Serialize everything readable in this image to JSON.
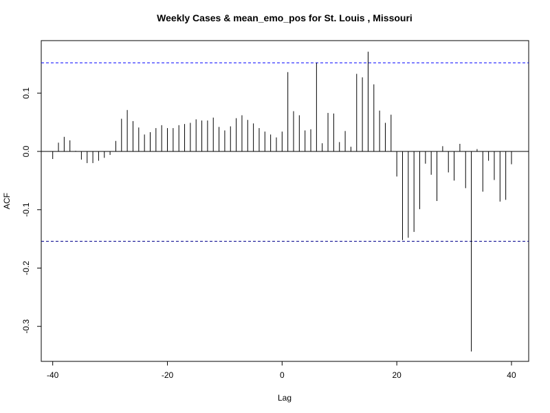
{
  "chart_data": {
    "type": "bar",
    "title": "Weekly Cases & mean_emo_pos for St. Louis , Missouri",
    "xlabel": "Lag",
    "ylabel": "ACF",
    "xlim": [
      -42,
      43
    ],
    "ylim": [
      -0.36,
      0.19
    ],
    "xticks": [
      -40,
      -20,
      0,
      20,
      40
    ],
    "yticks": [
      -0.3,
      -0.2,
      -0.1,
      0.0,
      0.1
    ],
    "ytick_labels": [
      "-0.3",
      "-0.2",
      "-0.1",
      "0.0",
      "0.1"
    ],
    "confidence_bounds": [
      0.152,
      -0.154
    ],
    "confidence_color": "#0000ff",
    "zero_line": 0.0,
    "lags": [
      -40,
      -39,
      -38,
      -37,
      -36,
      -35,
      -34,
      -33,
      -32,
      -31,
      -30,
      -29,
      -28,
      -27,
      -26,
      -25,
      -24,
      -23,
      -22,
      -21,
      -20,
      -19,
      -18,
      -17,
      -16,
      -15,
      -14,
      -13,
      -12,
      -11,
      -10,
      -9,
      -8,
      -7,
      -6,
      -5,
      -4,
      -3,
      -2,
      -1,
      0,
      1,
      2,
      3,
      4,
      5,
      6,
      7,
      8,
      9,
      10,
      11,
      12,
      13,
      14,
      15,
      16,
      17,
      18,
      19,
      20,
      21,
      22,
      23,
      24,
      25,
      26,
      27,
      28,
      29,
      30,
      31,
      32,
      33,
      34,
      35,
      36,
      37,
      38,
      39,
      40
    ],
    "values": [
      -0.013,
      0.015,
      0.025,
      0.019,
      0.001,
      -0.014,
      -0.02,
      -0.02,
      -0.016,
      -0.011,
      -0.006,
      0.018,
      0.056,
      0.071,
      0.052,
      0.041,
      0.029,
      0.033,
      0.04,
      0.045,
      0.04,
      0.04,
      0.045,
      0.047,
      0.049,
      0.055,
      0.053,
      0.053,
      0.058,
      0.042,
      0.036,
      0.043,
      0.057,
      0.062,
      0.054,
      0.048,
      0.04,
      0.034,
      0.029,
      0.024,
      0.034,
      0.136,
      0.069,
      0.062,
      0.036,
      0.038,
      0.152,
      0.014,
      0.066,
      0.065,
      0.016,
      0.035,
      0.008,
      0.133,
      0.127,
      0.171,
      0.115,
      0.07,
      0.049,
      0.063,
      -0.043,
      -0.152,
      -0.148,
      -0.138,
      -0.099,
      -0.021,
      -0.04,
      -0.085,
      0.009,
      -0.036,
      -0.05,
      0.013,
      -0.063,
      -0.343,
      0.004,
      -0.069,
      -0.016,
      -0.049,
      -0.086,
      -0.083,
      -0.022
    ]
  }
}
